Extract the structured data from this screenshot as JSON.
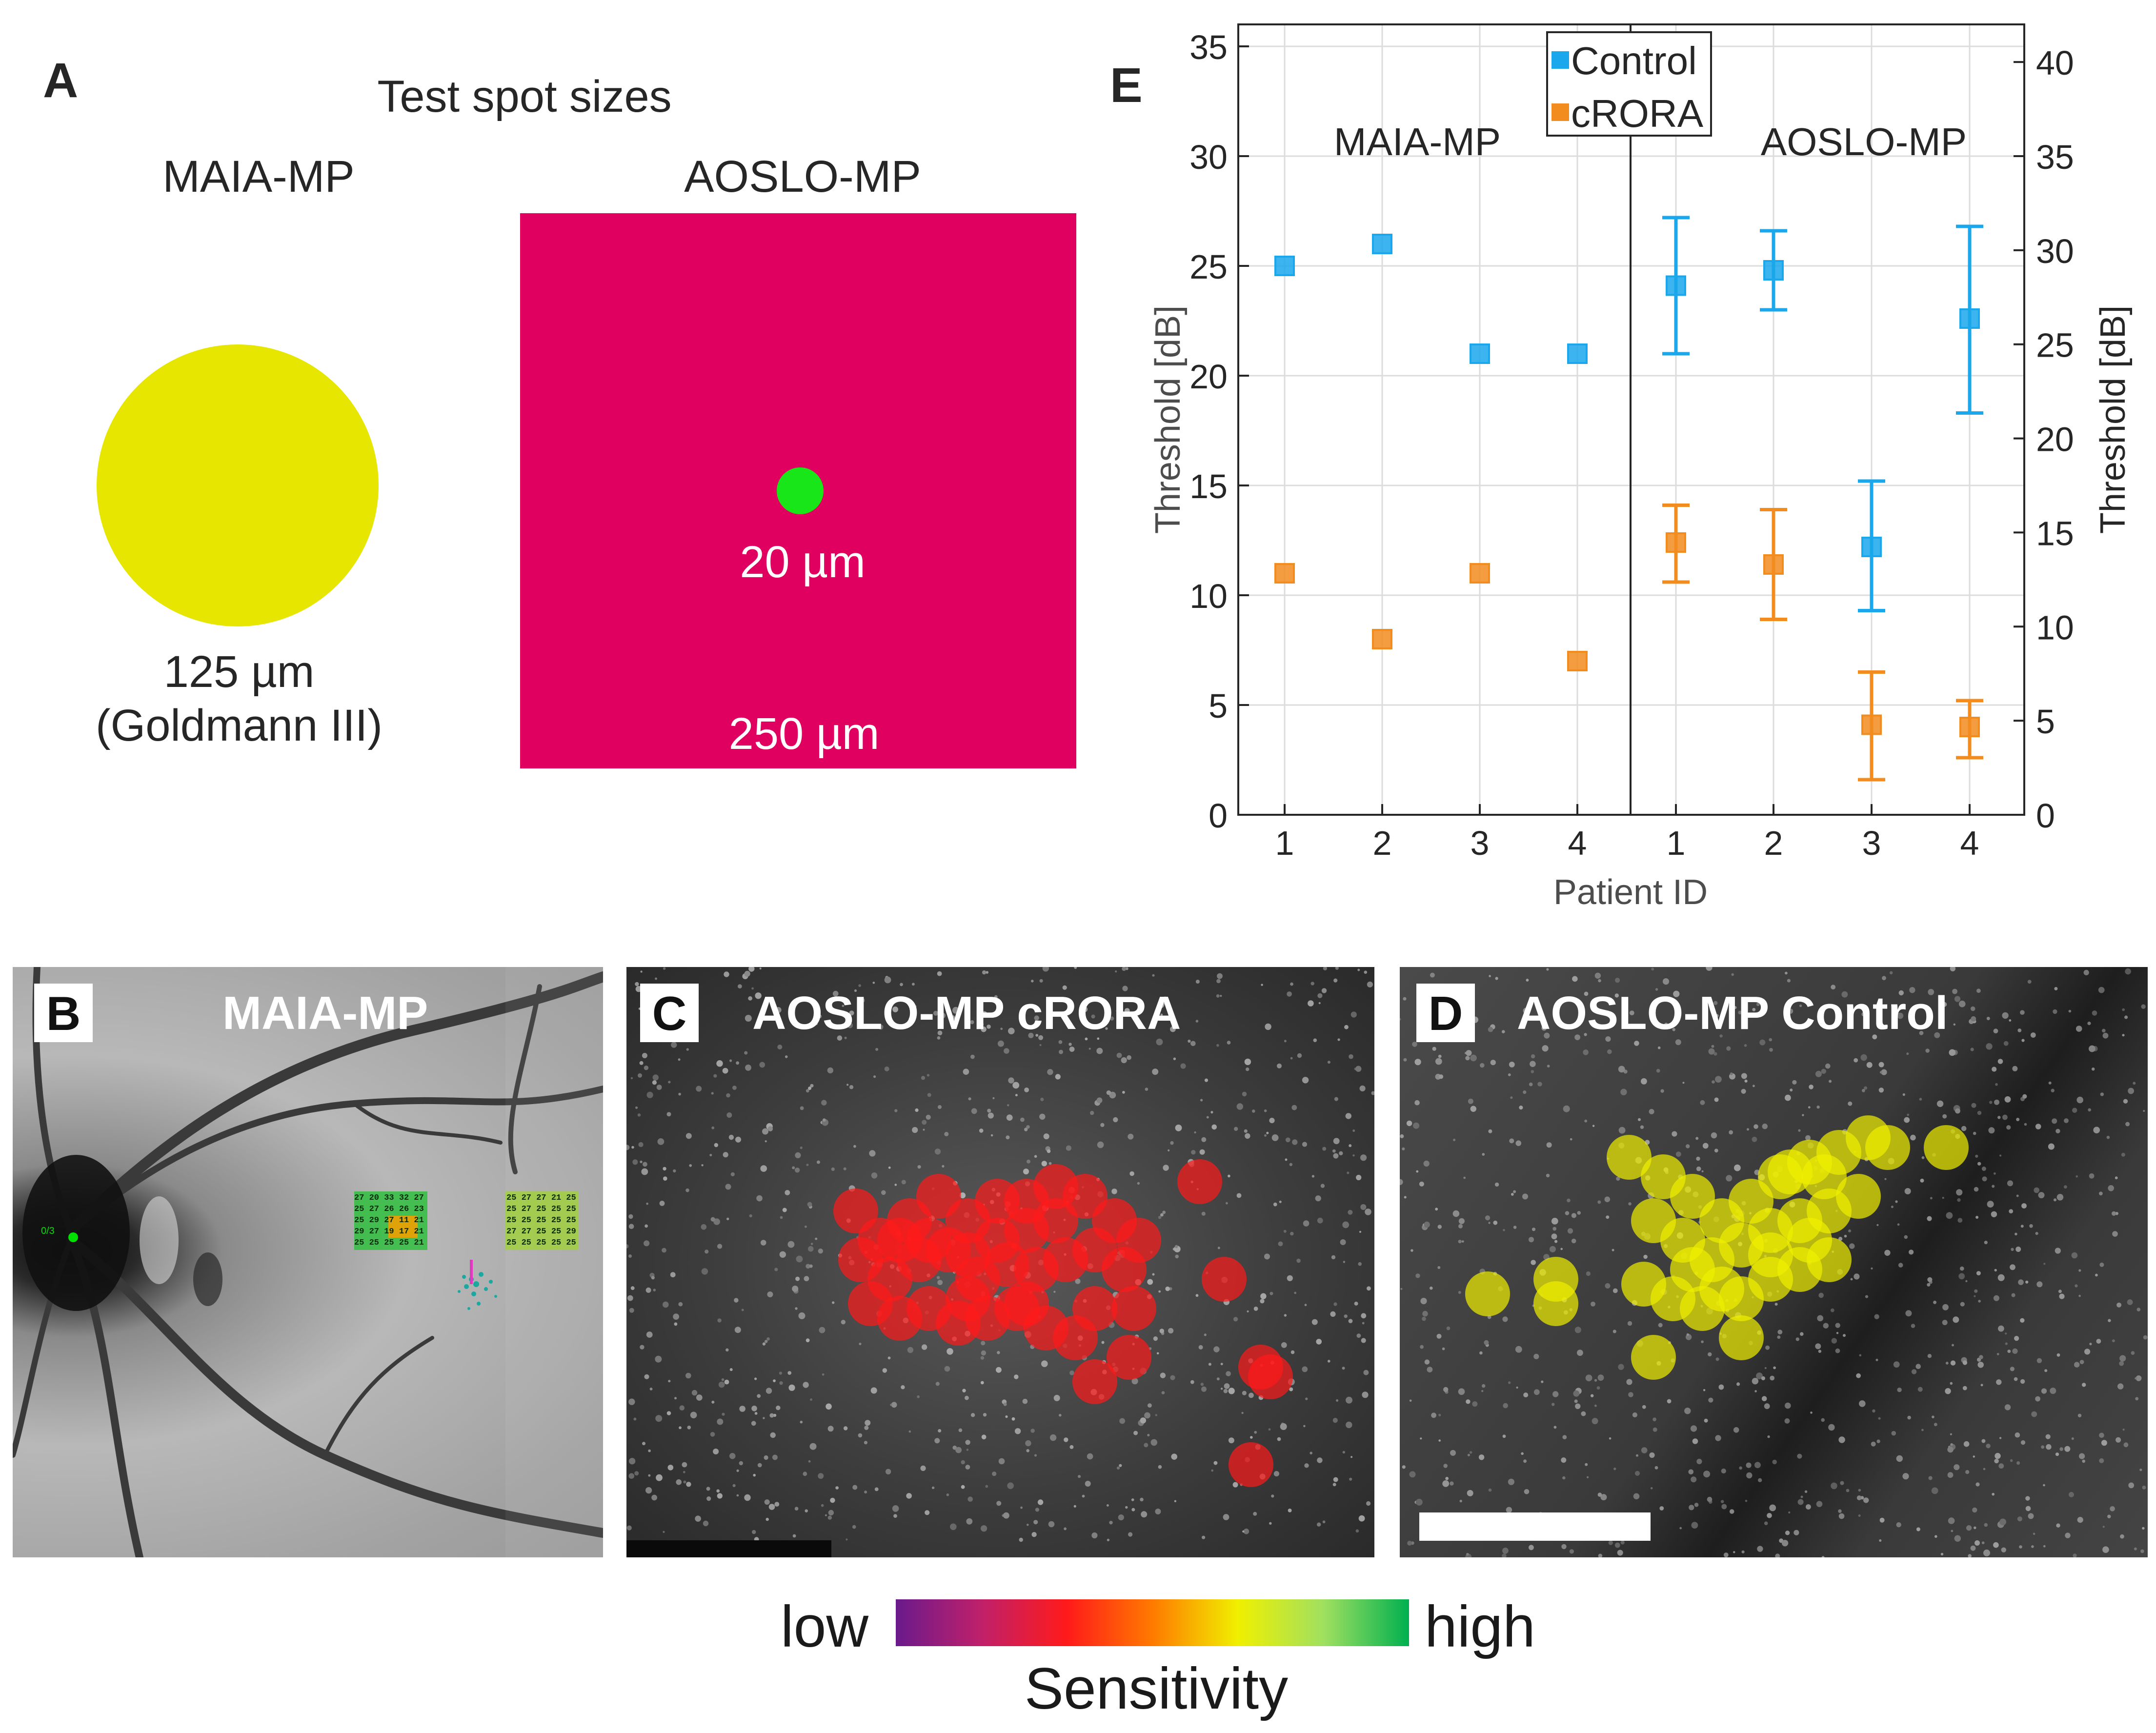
{
  "panel_a": {
    "letter": "A",
    "title": "Test spot sizes",
    "maia_label": "MAIA-MP",
    "aoslo_label": "AOSLO-MP",
    "maia_spot_size": "125 µm",
    "maia_spot_note": "(Goldmann III)",
    "aoslo_spot_size": "20 µm",
    "aoslo_field_size": "250 µm",
    "colors": {
      "maia_spot": "#e6e600",
      "aoslo_field": "#e0005f",
      "aoslo_spot": "#19e619"
    }
  },
  "panel_b": {
    "letter": "B",
    "title": "MAIA-MP",
    "fixation_label": "0/3",
    "grid_rows_left": [
      "27 20 33 32 27",
      "25 27 26 26 23",
      "25 29 27 11 21",
      "29 27 19 17 21",
      "25 25 25 25 21"
    ],
    "grid_rows_right": [
      "25 27 27 21 25",
      "25 27 25 25 25",
      "25 25 25 25 25",
      "27 27 25 25 29",
      "25 25 25 25 25"
    ]
  },
  "panel_c": {
    "letter": "C",
    "title": "AOSLO-MP cRORA",
    "spot_color": "#ff1a1a"
  },
  "panel_d": {
    "letter": "D",
    "title": "AOSLO-MP Control",
    "spot_color": "#f0f000"
  },
  "colorbar": {
    "low_label": "low",
    "high_label": "high",
    "title": "Sensitivity",
    "stops": [
      "#6a1a8c",
      "#c0206a",
      "#ff1a1a",
      "#ff7a00",
      "#f0f000",
      "#a0e060",
      "#00b050"
    ]
  },
  "chart_data": {
    "type": "scatter",
    "panel_letter": "E",
    "xlabel": "Patient ID",
    "ylabel_left": "Threshold [dB]",
    "ylabel_right": "Threshold [dB]",
    "ylim_left": [
      0,
      36
    ],
    "ylim_right": [
      0,
      42
    ],
    "yticks_left": [
      0,
      5,
      10,
      15,
      20,
      25,
      30,
      35
    ],
    "yticks_right": [
      0,
      5,
      10,
      15,
      20,
      25,
      30,
      35,
      40
    ],
    "categories": [
      "1",
      "2",
      "3",
      "4",
      "1",
      "2",
      "3",
      "4"
    ],
    "group_labels": [
      "MAIA-MP",
      "AOSLO-MP"
    ],
    "grid": true,
    "legend_position": "top-center",
    "series": [
      {
        "name": "Control",
        "color": "#1aa7ec",
        "values": [
          25,
          26,
          21,
          21,
          24.1,
          24.8,
          12.2,
          22.6
        ],
        "err_low": [
          null,
          null,
          null,
          null,
          21.0,
          23.0,
          9.3,
          18.3
        ],
        "err_high": [
          null,
          null,
          null,
          null,
          27.2,
          26.6,
          15.2,
          26.8
        ]
      },
      {
        "name": "cRORA",
        "color": "#f28c1f",
        "values": [
          11,
          8,
          11,
          7,
          12.4,
          11.4,
          4.1,
          4.0
        ],
        "err_low": [
          null,
          null,
          null,
          null,
          10.6,
          8.9,
          1.6,
          2.6
        ],
        "err_high": [
          null,
          null,
          null,
          null,
          14.1,
          13.9,
          6.5,
          5.2
        ]
      }
    ]
  }
}
